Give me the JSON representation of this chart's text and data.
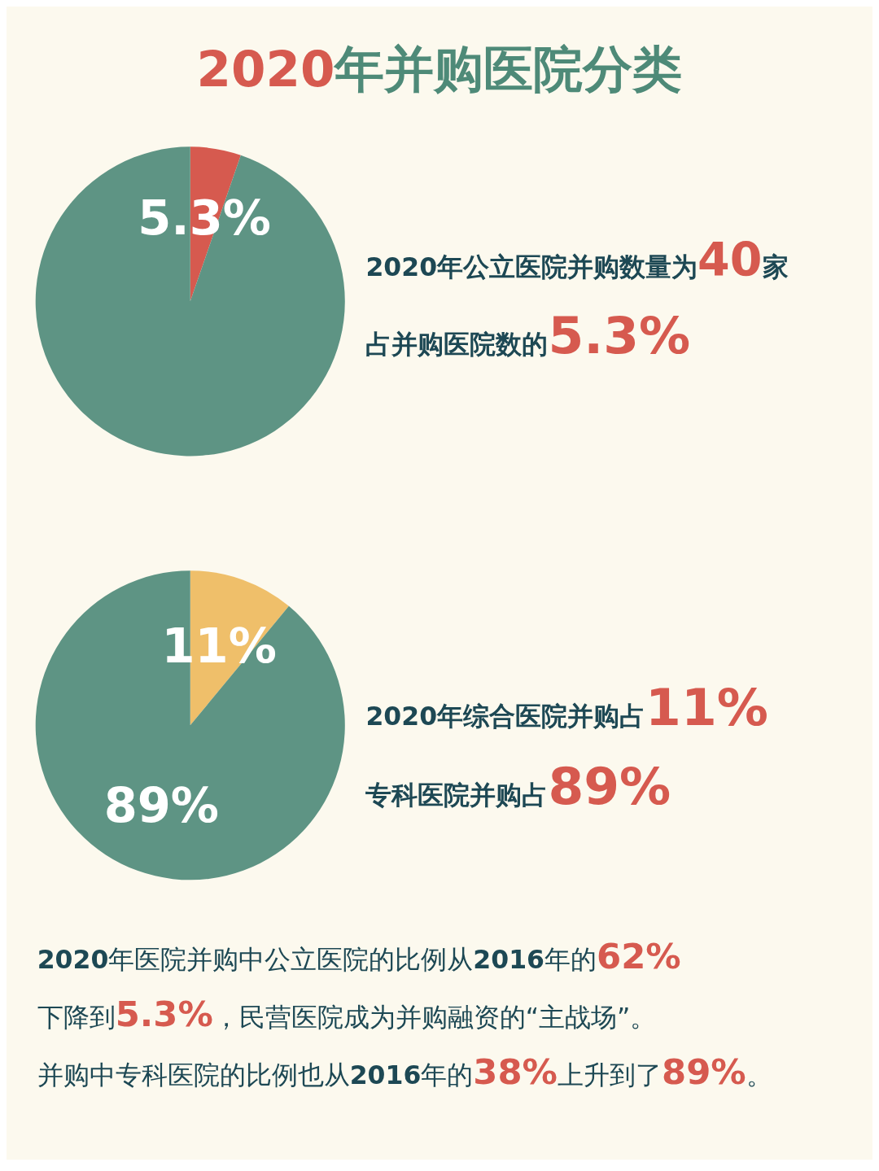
{
  "chart_data": [
    {
      "type": "pie",
      "title": "2020年并购医院分类",
      "categories": [
        null,
        null
      ],
      "values": [
        5.3,
        94.7
      ],
      "colors": [
        "#d65a4f",
        "#5e9484"
      ],
      "value_labels": [
        "5.3%",
        null
      ],
      "annotations": [
        "2020年公立医院并购数量为40家",
        "占并购医院数的5.3%"
      ]
    },
    {
      "type": "pie",
      "categories": [
        null,
        null
      ],
      "values": [
        11,
        89
      ],
      "colors": [
        "#efbf6a",
        "#5e9484"
      ],
      "value_labels": [
        "11%",
        "89%"
      ],
      "annotations": [
        "2020年综合医院并购占11%",
        "专科医院并购占89%",
        "2020年医院并购中公立医院的比例从2016年的62%",
        "下降到5.3%，民营医院成为并购融资的“主战场”。",
        "并购中专科医院的比例也从2016年的38%上升到了89%。"
      ]
    }
  ]
}
